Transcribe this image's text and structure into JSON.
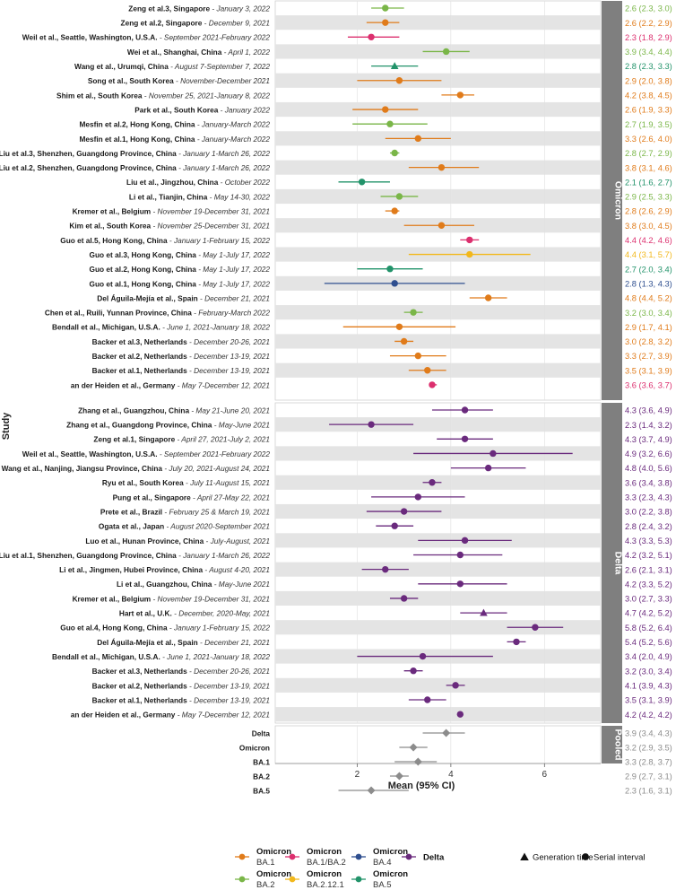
{
  "chart_data": {
    "type": "forest-plot",
    "xlabel": "Mean (95% CI)",
    "ylabel": "Study",
    "xlim": [
      0.25,
      7.2
    ],
    "xticks": [
      2,
      4,
      6
    ],
    "colors": {
      "BA.1": "#e07b1a",
      "BA.1/BA.2": "#dc2f6e",
      "BA.2": "#7ab648",
      "BA.2.12.1": "#f2b81c",
      "BA.4": "#2f4f8f",
      "BA.5": "#22936a",
      "Delta": "#6a2a7d",
      "Pooled": "#8c8c8c"
    },
    "legend": {
      "variants": [
        {
          "key": "BA.1",
          "line1": "Omicron",
          "line2": "BA.1"
        },
        {
          "key": "BA.1/BA.2",
          "line1": "Omicron",
          "line2": "BA.1/BA.2"
        },
        {
          "key": "BA.4",
          "line1": "Omicron",
          "line2": "BA.4"
        },
        {
          "key": "Delta",
          "line1": "Delta",
          "line2": ""
        },
        {
          "key": "BA.2",
          "line1": "Omicron",
          "line2": "BA.2"
        },
        {
          "key": "BA.2.12.1",
          "line1": "Omicron",
          "line2": "BA.2.12.1"
        },
        {
          "key": "BA.5",
          "line1": "Omicron",
          "line2": "BA.5"
        }
      ],
      "shapes": [
        {
          "shape": "triangle",
          "label": "Generation time"
        },
        {
          "shape": "circle",
          "label": "Serial interval"
        }
      ]
    },
    "panels": [
      {
        "name": "Omicron",
        "rows": [
          {
            "study": "Zeng et al.3, Singapore",
            "period": "January 3, 2022",
            "variant": "BA.2",
            "shape": "circle",
            "mean": 2.6,
            "lo": 2.3,
            "hi": 3.0,
            "label": "2.6 (2.3, 3.0)"
          },
          {
            "study": "Zeng et al.2, Singapore",
            "period": "December 9, 2021",
            "variant": "BA.1",
            "shape": "circle",
            "mean": 2.6,
            "lo": 2.2,
            "hi": 2.9,
            "label": "2.6 (2.2, 2.9)"
          },
          {
            "study": "Weil et al., Seattle, Washington, U.S.A.",
            "period": "September 2021-February 2022",
            "variant": "BA.1/BA.2",
            "shape": "circle",
            "mean": 2.3,
            "lo": 1.8,
            "hi": 2.9,
            "label": "2.3 (1.8, 2.9)"
          },
          {
            "study": "Wei et al., Shanghai, China",
            "period": "April 1, 2022",
            "variant": "BA.2",
            "shape": "circle",
            "mean": 3.9,
            "lo": 3.4,
            "hi": 4.4,
            "label": "3.9 (3.4, 4.4)"
          },
          {
            "study": "Wang et al., Urumqi, China",
            "period": "August 7-September 7, 2022",
            "variant": "BA.5",
            "shape": "triangle",
            "mean": 2.8,
            "lo": 2.3,
            "hi": 3.3,
            "label": "2.8 (2.3, 3.3)"
          },
          {
            "study": "Song et al., South Korea",
            "period": "November-December 2021",
            "variant": "BA.1",
            "shape": "circle",
            "mean": 2.9,
            "lo": 2.0,
            "hi": 3.8,
            "label": "2.9 (2.0, 3.8)"
          },
          {
            "study": "Shim et al., South Korea",
            "period": "November 25, 2021-January 8, 2022",
            "variant": "BA.1",
            "shape": "circle",
            "mean": 4.2,
            "lo": 3.8,
            "hi": 4.5,
            "label": "4.2 (3.8, 4.5)"
          },
          {
            "study": "Park et al., South Korea",
            "period": "January 2022",
            "variant": "BA.1",
            "shape": "circle",
            "mean": 2.6,
            "lo": 1.9,
            "hi": 3.3,
            "label": "2.6 (1.9, 3.3)"
          },
          {
            "study": "Mesfin et al.2, Hong Kong, China",
            "period": "January-March 2022",
            "variant": "BA.2",
            "shape": "circle",
            "mean": 2.7,
            "lo": 1.9,
            "hi": 3.5,
            "label": "2.7 (1.9, 3.5)"
          },
          {
            "study": "Mesfin et al.1, Hong Kong, China",
            "period": "January-March 2022",
            "variant": "BA.1",
            "shape": "circle",
            "mean": 3.3,
            "lo": 2.6,
            "hi": 4.0,
            "label": "3.3 (2.6, 4.0)"
          },
          {
            "study": "Liu et al.3, Shenzhen, Guangdong Province, China",
            "period": "January 1-March 26, 2022",
            "variant": "BA.2",
            "shape": "circle",
            "mean": 2.8,
            "lo": 2.7,
            "hi": 2.9,
            "label": "2.8 (2.7, 2.9)"
          },
          {
            "study": "Liu et al.2, Shenzhen, Guangdong Province, China",
            "period": "January 1-March 26, 2022",
            "variant": "BA.1",
            "shape": "circle",
            "mean": 3.8,
            "lo": 3.1,
            "hi": 4.6,
            "label": "3.8 (3.1, 4.6)"
          },
          {
            "study": "Liu et al., Jingzhou, China",
            "period": "October 2022",
            "variant": "BA.5",
            "shape": "circle",
            "mean": 2.1,
            "lo": 1.6,
            "hi": 2.7,
            "label": "2.1 (1.6, 2.7)"
          },
          {
            "study": "Li et al., Tianjin, China",
            "period": "May 14-30, 2022",
            "variant": "BA.2",
            "shape": "circle",
            "mean": 2.9,
            "lo": 2.5,
            "hi": 3.3,
            "label": "2.9 (2.5, 3.3)"
          },
          {
            "study": "Kremer et al., Belgium",
            "period": "November 19-December 31, 2021",
            "variant": "BA.1",
            "shape": "circle",
            "mean": 2.8,
            "lo": 2.6,
            "hi": 2.9,
            "label": "2.8 (2.6, 2.9)"
          },
          {
            "study": "Kim et al., South Korea",
            "period": "November 25-December 31, 2021",
            "variant": "BA.1",
            "shape": "circle",
            "mean": 3.8,
            "lo": 3.0,
            "hi": 4.5,
            "label": "3.8 (3.0, 4.5)"
          },
          {
            "study": "Guo et al.5, Hong Kong, China",
            "period": "January 1-February 15, 2022",
            "variant": "BA.1/BA.2",
            "shape": "circle",
            "mean": 4.4,
            "lo": 4.2,
            "hi": 4.6,
            "label": "4.4 (4.2, 4.6)"
          },
          {
            "study": "Guo et al.3, Hong Kong, China",
            "period": "May 1-July 17, 2022",
            "variant": "BA.2.12.1",
            "shape": "circle",
            "mean": 4.4,
            "lo": 3.1,
            "hi": 5.7,
            "label": "4.4 (3.1, 5.7)"
          },
          {
            "study": "Guo et al.2, Hong Kong, China",
            "period": "May 1-July 17, 2022",
            "variant": "BA.5",
            "shape": "circle",
            "mean": 2.7,
            "lo": 2.0,
            "hi": 3.4,
            "label": "2.7 (2.0, 3.4)"
          },
          {
            "study": "Guo et al.1, Hong Kong, China",
            "period": "May 1-July 17, 2022",
            "variant": "BA.4",
            "shape": "circle",
            "mean": 2.8,
            "lo": 1.3,
            "hi": 4.3,
            "label": "2.8 (1.3, 4.3)"
          },
          {
            "study": "Del Águila-Mejía et al., Spain",
            "period": "December 21, 2021",
            "variant": "BA.1",
            "shape": "circle",
            "mean": 4.8,
            "lo": 4.4,
            "hi": 5.2,
            "label": "4.8 (4.4, 5.2)"
          },
          {
            "study": "Chen et al., Ruili, Yunnan Province, China",
            "period": "February-March 2022",
            "variant": "BA.2",
            "shape": "circle",
            "mean": 3.2,
            "lo": 3.0,
            "hi": 3.4,
            "label": "3.2 (3.0, 3.4)"
          },
          {
            "study": "Bendall et al., Michigan, U.S.A.",
            "period": "June 1, 2021-January 18, 2022",
            "variant": "BA.1",
            "shape": "circle",
            "mean": 2.9,
            "lo": 1.7,
            "hi": 4.1,
            "label": "2.9 (1.7, 4.1)"
          },
          {
            "study": "Backer et al.3, Netherlands",
            "period": "December 20-26, 2021",
            "variant": "BA.1",
            "shape": "circle",
            "mean": 3.0,
            "lo": 2.8,
            "hi": 3.2,
            "label": "3.0 (2.8, 3.2)"
          },
          {
            "study": "Backer et al.2, Netherlands",
            "period": "December 13-19, 2021",
            "variant": "BA.1",
            "shape": "circle",
            "mean": 3.3,
            "lo": 2.7,
            "hi": 3.9,
            "label": "3.3 (2.7, 3.9)"
          },
          {
            "study": "Backer et al.1, Netherlands",
            "period": "December 13-19, 2021",
            "variant": "BA.1",
            "shape": "circle",
            "mean": 3.5,
            "lo": 3.1,
            "hi": 3.9,
            "label": "3.5 (3.1, 3.9)"
          },
          {
            "study": "an der Heiden et al., Germany",
            "period": "May 7-December 12, 2021",
            "variant": "BA.1/BA.2",
            "shape": "circle",
            "mean": 3.6,
            "lo": 3.6,
            "hi": 3.7,
            "label": "3.6 (3.6, 3.7)"
          }
        ]
      },
      {
        "name": "Delta",
        "rows": [
          {
            "study": "Zhang et al., Guangzhou, China",
            "period": "May 21-June 20, 2021",
            "variant": "Delta",
            "shape": "circle",
            "mean": 4.3,
            "lo": 3.6,
            "hi": 4.9,
            "label": "4.3 (3.6, 4.9)"
          },
          {
            "study": "Zhang et al., Guangdong Province, China",
            "period": "May-June 2021",
            "variant": "Delta",
            "shape": "circle",
            "mean": 2.3,
            "lo": 1.4,
            "hi": 3.2,
            "label": "2.3 (1.4, 3.2)"
          },
          {
            "study": "Zeng et al.1, Singapore",
            "period": "April 27, 2021-July 2, 2021",
            "variant": "Delta",
            "shape": "circle",
            "mean": 4.3,
            "lo": 3.7,
            "hi": 4.9,
            "label": "4.3 (3.7, 4.9)"
          },
          {
            "study": "Weil et al., Seattle, Washington, U.S.A.",
            "period": "September 2021-February 2022",
            "variant": "Delta",
            "shape": "circle",
            "mean": 4.9,
            "lo": 3.2,
            "hi": 6.6,
            "label": "4.9 (3.2, 6.6)"
          },
          {
            "study": "Wang et al., Nanjing, Jiangsu Province, China",
            "period": "July 20, 2021-August 24, 2021",
            "variant": "Delta",
            "shape": "circle",
            "mean": 4.8,
            "lo": 4.0,
            "hi": 5.6,
            "label": "4.8 (4.0, 5.6)"
          },
          {
            "study": "Ryu et al., South Korea",
            "period": "July 11-August 15, 2021",
            "variant": "Delta",
            "shape": "circle",
            "mean": 3.6,
            "lo": 3.4,
            "hi": 3.8,
            "label": "3.6 (3.4, 3.8)"
          },
          {
            "study": "Pung et al., Singapore",
            "period": "April 27-May 22, 2021",
            "variant": "Delta",
            "shape": "circle",
            "mean": 3.3,
            "lo": 2.3,
            "hi": 4.3,
            "label": "3.3 (2.3, 4.3)"
          },
          {
            "study": "Prete et al., Brazil",
            "period": "February 25 & March 19, 2021",
            "variant": "Delta",
            "shape": "circle",
            "mean": 3.0,
            "lo": 2.2,
            "hi": 3.8,
            "label": "3.0 (2.2, 3.8)"
          },
          {
            "study": "Ogata et al., Japan",
            "period": "August 2020-September 2021",
            "variant": "Delta",
            "shape": "circle",
            "mean": 2.8,
            "lo": 2.4,
            "hi": 3.2,
            "label": "2.8 (2.4, 3.2)"
          },
          {
            "study": "Luo et al., Hunan Province, China",
            "period": "July-August, 2021",
            "variant": "Delta",
            "shape": "circle",
            "mean": 4.3,
            "lo": 3.3,
            "hi": 5.3,
            "label": "4.3 (3.3, 5.3)"
          },
          {
            "study": "Liu et al.1, Shenzhen, Guangdong Province, China",
            "period": "January 1-March 26, 2022",
            "variant": "Delta",
            "shape": "circle",
            "mean": 4.2,
            "lo": 3.2,
            "hi": 5.1,
            "label": "4.2 (3.2, 5.1)"
          },
          {
            "study": "Li et al., Jingmen, Hubei Province, China",
            "period": "August 4-20, 2021",
            "variant": "Delta",
            "shape": "circle",
            "mean": 2.6,
            "lo": 2.1,
            "hi": 3.1,
            "label": "2.6 (2.1, 3.1)"
          },
          {
            "study": "Li et al., Guangzhou, China",
            "period": "May-June 2021",
            "variant": "Delta",
            "shape": "circle",
            "mean": 4.2,
            "lo": 3.3,
            "hi": 5.2,
            "label": "4.2 (3.3, 5.2)"
          },
          {
            "study": "Kremer et al., Belgium",
            "period": "November 19-December 31, 2021",
            "variant": "Delta",
            "shape": "circle",
            "mean": 3.0,
            "lo": 2.7,
            "hi": 3.3,
            "label": "3.0 (2.7, 3.3)"
          },
          {
            "study": "Hart et al., U.K.",
            "period": "December, 2020-May, 2021",
            "variant": "Delta",
            "shape": "triangle",
            "mean": 4.7,
            "lo": 4.2,
            "hi": 5.2,
            "label": "4.7 (4.2, 5.2)"
          },
          {
            "study": "Guo et al.4, Hong Kong, China",
            "period": "January 1-February 15, 2022",
            "variant": "Delta",
            "shape": "circle",
            "mean": 5.8,
            "lo": 5.2,
            "hi": 6.4,
            "label": "5.8 (5.2, 6.4)"
          },
          {
            "study": "Del Águila-Mejía et al., Spain",
            "period": "December 21, 2021",
            "variant": "Delta",
            "shape": "circle",
            "mean": 5.4,
            "lo": 5.2,
            "hi": 5.6,
            "label": "5.4 (5.2, 5.6)"
          },
          {
            "study": "Bendall et al., Michigan, U.S.A.",
            "period": "June 1, 2021-January 18, 2022",
            "variant": "Delta",
            "shape": "circle",
            "mean": 3.4,
            "lo": 2.0,
            "hi": 4.9,
            "label": "3.4 (2.0, 4.9)"
          },
          {
            "study": "Backer et al.3, Netherlands",
            "period": "December 20-26, 2021",
            "variant": "Delta",
            "shape": "circle",
            "mean": 3.2,
            "lo": 3.0,
            "hi": 3.4,
            "label": "3.2 (3.0, 3.4)"
          },
          {
            "study": "Backer et al.2, Netherlands",
            "period": "December 13-19, 2021",
            "variant": "Delta",
            "shape": "circle",
            "mean": 4.1,
            "lo": 3.9,
            "hi": 4.3,
            "label": "4.1 (3.9, 4.3)"
          },
          {
            "study": "Backer et al.1, Netherlands",
            "period": "December 13-19, 2021",
            "variant": "Delta",
            "shape": "circle",
            "mean": 3.5,
            "lo": 3.1,
            "hi": 3.9,
            "label": "3.5 (3.1, 3.9)"
          },
          {
            "study": "an der Heiden et al., Germany",
            "period": "May 7-December 12, 2021",
            "variant": "Delta",
            "shape": "circle",
            "mean": 4.2,
            "lo": 4.2,
            "hi": 4.2,
            "label": "4.2 (4.2, 4.2)"
          }
        ]
      },
      {
        "name": "Pooled",
        "rows": [
          {
            "study": "Delta",
            "period": "",
            "variant": "Pooled",
            "shape": "diamond",
            "mean": 3.9,
            "lo": 3.4,
            "hi": 4.3,
            "label": "3.9 (3.4, 4.3)"
          },
          {
            "study": "Omicron",
            "period": "",
            "variant": "Pooled",
            "shape": "diamond",
            "mean": 3.2,
            "lo": 2.9,
            "hi": 3.5,
            "label": "3.2 (2.9, 3.5)"
          },
          {
            "study": "BA.1",
            "period": "",
            "variant": "Pooled",
            "shape": "diamond",
            "mean": 3.3,
            "lo": 2.8,
            "hi": 3.7,
            "label": "3.3 (2.8, 3.7)"
          },
          {
            "study": "BA.2",
            "period": "",
            "variant": "Pooled",
            "shape": "diamond",
            "mean": 2.9,
            "lo": 2.7,
            "hi": 3.1,
            "label": "2.9 (2.7, 3.1)"
          },
          {
            "study": "BA.5",
            "period": "",
            "variant": "Pooled",
            "shape": "diamond",
            "mean": 2.3,
            "lo": 1.6,
            "hi": 3.1,
            "label": "2.3 (1.6, 3.1)"
          }
        ]
      }
    ]
  }
}
